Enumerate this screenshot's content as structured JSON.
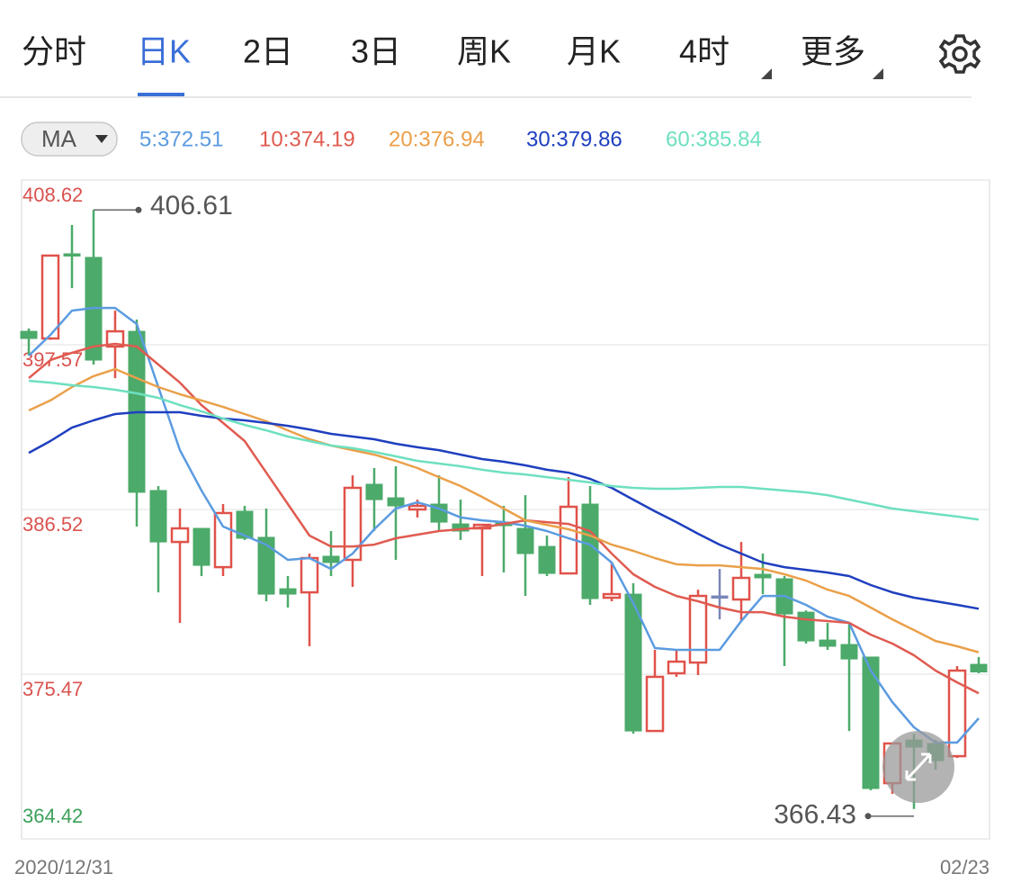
{
  "tabs": [
    "分时",
    "日K",
    "2日",
    "3日",
    "周K",
    "月K",
    "4时",
    "更多"
  ],
  "active_tab": 1,
  "indicator": "MA",
  "chart_data": {
    "type": "candlestick",
    "categories": [
      "2020/12/31",
      null,
      null,
      null,
      null,
      null,
      null,
      null,
      null,
      null,
      null,
      null,
      null,
      null,
      null,
      null,
      null,
      null,
      null,
      null,
      null,
      null,
      null,
      null,
      null,
      null,
      null,
      null,
      null,
      null,
      null,
      null,
      null,
      null,
      null,
      null,
      null,
      null,
      null,
      null,
      null,
      null,
      null,
      null,
      "02/23"
    ],
    "open": [
      398.47,
      397.99,
      403.67,
      403.43,
      397.45,
      398.47,
      387.79,
      384.34,
      385.25,
      382.65,
      386.4,
      384.65,
      381.2,
      380.96,
      383.38,
      383.14,
      388.21,
      387.3,
      386.52,
      386.88,
      385.55,
      385.25,
      385.67,
      385.25,
      384.04,
      382.23,
      386.88,
      380.6,
      380.84,
      371.66,
      375.53,
      376.25,
      380.72,
      380.48,
      382.17,
      381.87,
      379.63,
      377.76,
      377.46,
      376.62,
      368.16,
      371.06,
      370.82,
      369.97,
      376.13
    ],
    "high": [
      398.66,
      403.6,
      405.6,
      406.61,
      399.86,
      399.26,
      388.09,
      386.58,
      385.25,
      386.88,
      386.76,
      386.58,
      382.05,
      383.56,
      385.07,
      388.81,
      389.3,
      389.42,
      387.18,
      388.81,
      387.18,
      385.49,
      386.76,
      387.48,
      384.77,
      388.69,
      388.09,
      382.96,
      381.57,
      377.1,
      377.1,
      381.14,
      382.53,
      384.34,
      383.56,
      382.05,
      379.75,
      378.91,
      378.91,
      376.62,
      370.82,
      371.48,
      371.06,
      376.01,
      376.62
    ],
    "low": [
      396.84,
      397.9,
      401.37,
      396.24,
      395.33,
      385.37,
      380.96,
      378.91,
      382.05,
      382.05,
      384.47,
      380.36,
      379.94,
      377.34,
      382.05,
      381.33,
      385.07,
      383.14,
      385.98,
      385.07,
      384.47,
      382.05,
      382.29,
      380.72,
      382.05,
      382.17,
      380.12,
      380.36,
      371.48,
      371.66,
      375.29,
      375.41,
      379.15,
      379.03,
      380.84,
      376.01,
      377.52,
      377.1,
      371.66,
      367.68,
      367.44,
      366.43,
      369.07,
      369.85,
      375.53
    ],
    "close": [
      397.99,
      403.55,
      403.55,
      396.54,
      398.47,
      387.67,
      384.34,
      385.25,
      382.77,
      386.28,
      384.59,
      380.84,
      380.84,
      383.26,
      382.96,
      387.97,
      387.18,
      386.76,
      386.76,
      385.67,
      385.07,
      385.49,
      385.43,
      383.56,
      382.23,
      386.7,
      380.54,
      380.84,
      371.66,
      375.29,
      376.31,
      380.72,
      380.72,
      381.93,
      381.93,
      379.51,
      377.7,
      377.34,
      376.49,
      367.8,
      370.82,
      370.58,
      369.67,
      375.71,
      375.62
    ],
    "up_color": "#e0524a",
    "down_color": "#4caa6a",
    "flat_color": "#7a86b8",
    "ma_series": [
      {
        "label": "5:372.51",
        "color": "#5b9be0",
        "values": [
          396.84,
          398.23,
          399.86,
          400.04,
          400.04,
          398.96,
          394.73,
          390.5,
          387.79,
          385.37,
          384.77,
          384.16,
          383.14,
          383.26,
          382.53,
          383.56,
          385.19,
          386.58,
          387.0,
          386.58,
          385.98,
          385.79,
          385.67,
          385.43,
          385.07,
          384.59,
          384.16,
          382.96,
          380.24,
          377.22,
          377.1,
          377.1,
          377.1,
          379.03,
          380.72,
          380.72,
          380.12,
          379.33,
          378.91,
          375.71,
          373.6,
          371.91,
          370.88,
          370.88,
          372.51
        ]
      },
      {
        "label": "10:374.19",
        "color": "#e05b50",
        "values": [
          395.33,
          396.54,
          397.03,
          397.45,
          397.63,
          397.45,
          396.24,
          395.03,
          393.52,
          392.32,
          391.11,
          388.99,
          386.88,
          384.77,
          384.04,
          384.04,
          384.16,
          384.59,
          384.83,
          385.07,
          385.19,
          385.31,
          385.55,
          385.79,
          385.67,
          385.55,
          385.07,
          383.56,
          382.17,
          381.33,
          380.72,
          380.36,
          379.94,
          379.63,
          379.63,
          379.33,
          379.15,
          379.03,
          378.91,
          378.12,
          377.52,
          376.74,
          375.71,
          374.92,
          374.19
        ]
      },
      {
        "label": "20:376.94",
        "color": "#eaa04a",
        "values": [
          393.16,
          393.83,
          394.73,
          395.46,
          395.94,
          395.33,
          394.73,
          394.25,
          393.83,
          393.4,
          392.92,
          392.44,
          391.83,
          391.23,
          390.81,
          390.5,
          390.2,
          389.78,
          389.3,
          388.69,
          388.09,
          387.36,
          386.58,
          385.79,
          385.49,
          385.19,
          384.77,
          384.16,
          383.74,
          383.26,
          382.84,
          382.77,
          382.77,
          382.65,
          382.53,
          382.17,
          381.75,
          381.14,
          380.72,
          379.94,
          379.15,
          378.43,
          377.7,
          377.34,
          376.94
        ]
      },
      {
        "label": "30:379.86",
        "color": "#1f3fbf",
        "values": [
          390.32,
          391.11,
          392.01,
          392.5,
          392.92,
          393.04,
          393.04,
          393.04,
          392.8,
          392.62,
          392.5,
          392.32,
          392.13,
          391.89,
          391.59,
          391.41,
          391.23,
          390.93,
          390.69,
          390.5,
          390.2,
          389.9,
          389.72,
          389.48,
          389.18,
          388.99,
          388.57,
          387.97,
          387.18,
          386.4,
          385.67,
          384.89,
          384.16,
          383.56,
          382.96,
          382.65,
          382.47,
          382.29,
          382.05,
          381.45,
          380.96,
          380.6,
          380.36,
          380.12,
          379.86
        ]
      },
      {
        "label": "60:385.84",
        "color": "#6ee0c0",
        "values": [
          395.15,
          395.03,
          394.85,
          394.73,
          394.55,
          394.31,
          394.01,
          393.52,
          393.1,
          392.62,
          392.19,
          391.83,
          391.41,
          391.11,
          390.81,
          390.63,
          390.38,
          390.08,
          389.78,
          389.6,
          389.42,
          389.18,
          388.99,
          388.87,
          388.69,
          388.51,
          388.33,
          388.09,
          387.97,
          387.91,
          387.91,
          387.97,
          388.03,
          388.03,
          387.91,
          387.79,
          387.67,
          387.48,
          387.18,
          386.88,
          386.58,
          386.4,
          386.22,
          386.04,
          385.84
        ]
      }
    ],
    "annotations": [
      406.61,
      366.43
    ],
    "ylim": [
      364.42,
      408.62
    ],
    "yticks": [
      364.42,
      375.47,
      386.52,
      397.57,
      408.62
    ],
    "grid": true
  }
}
